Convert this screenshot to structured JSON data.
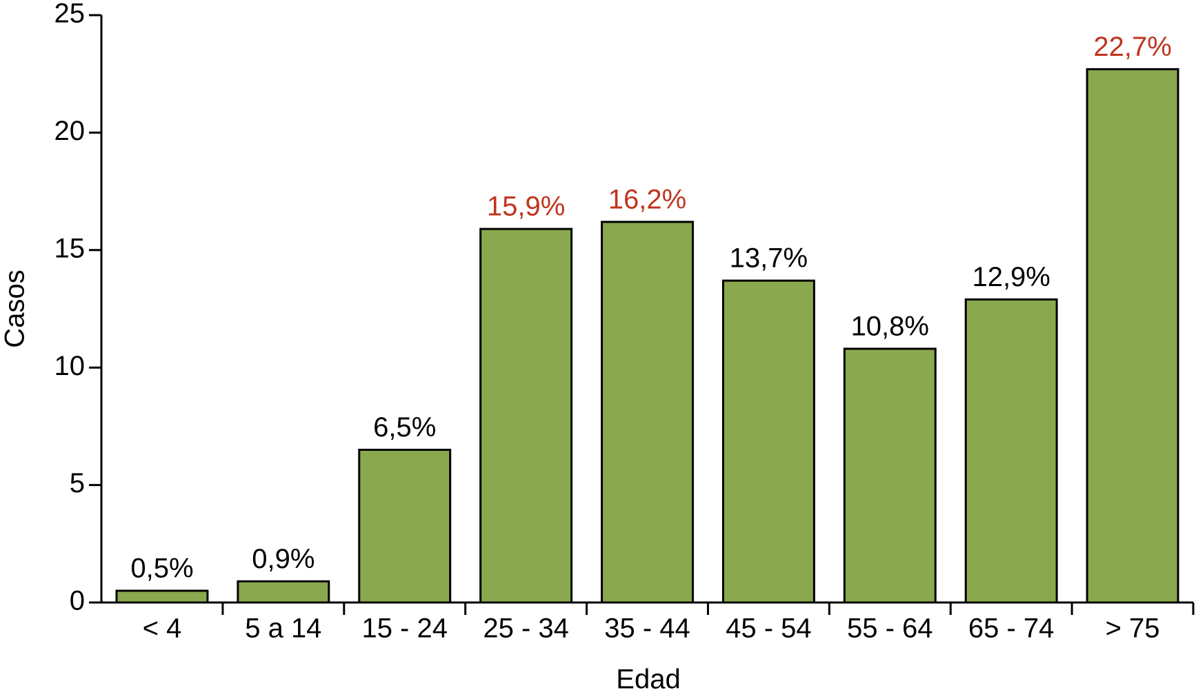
{
  "chart_data": {
    "type": "bar",
    "x_label": "Edad",
    "y_label": "Casos",
    "categories": [
      "< 4",
      "5 a 14",
      "15 - 24",
      "25 - 34",
      "35 - 44",
      "45 - 54",
      "55 - 64",
      "65 - 74",
      "> 75"
    ],
    "values": [
      0.5,
      0.9,
      6.5,
      15.9,
      16.2,
      13.7,
      10.8,
      12.9,
      22.7
    ],
    "value_labels": [
      "0,5%",
      "0,9%",
      "6,5%",
      "15,9%",
      "16,2%",
      "13,7%",
      "10,8%",
      "12,9%",
      "22,7%"
    ],
    "value_label_colors": [
      "#000000",
      "#000000",
      "#000000",
      "#c0341d",
      "#c0341d",
      "#000000",
      "#000000",
      "#000000",
      "#c0341d"
    ],
    "color": "#8aa84e",
    "ylim": [
      0,
      25
    ],
    "yticks": [
      0,
      5,
      10,
      15,
      20,
      25
    ],
    "grid": false
  }
}
